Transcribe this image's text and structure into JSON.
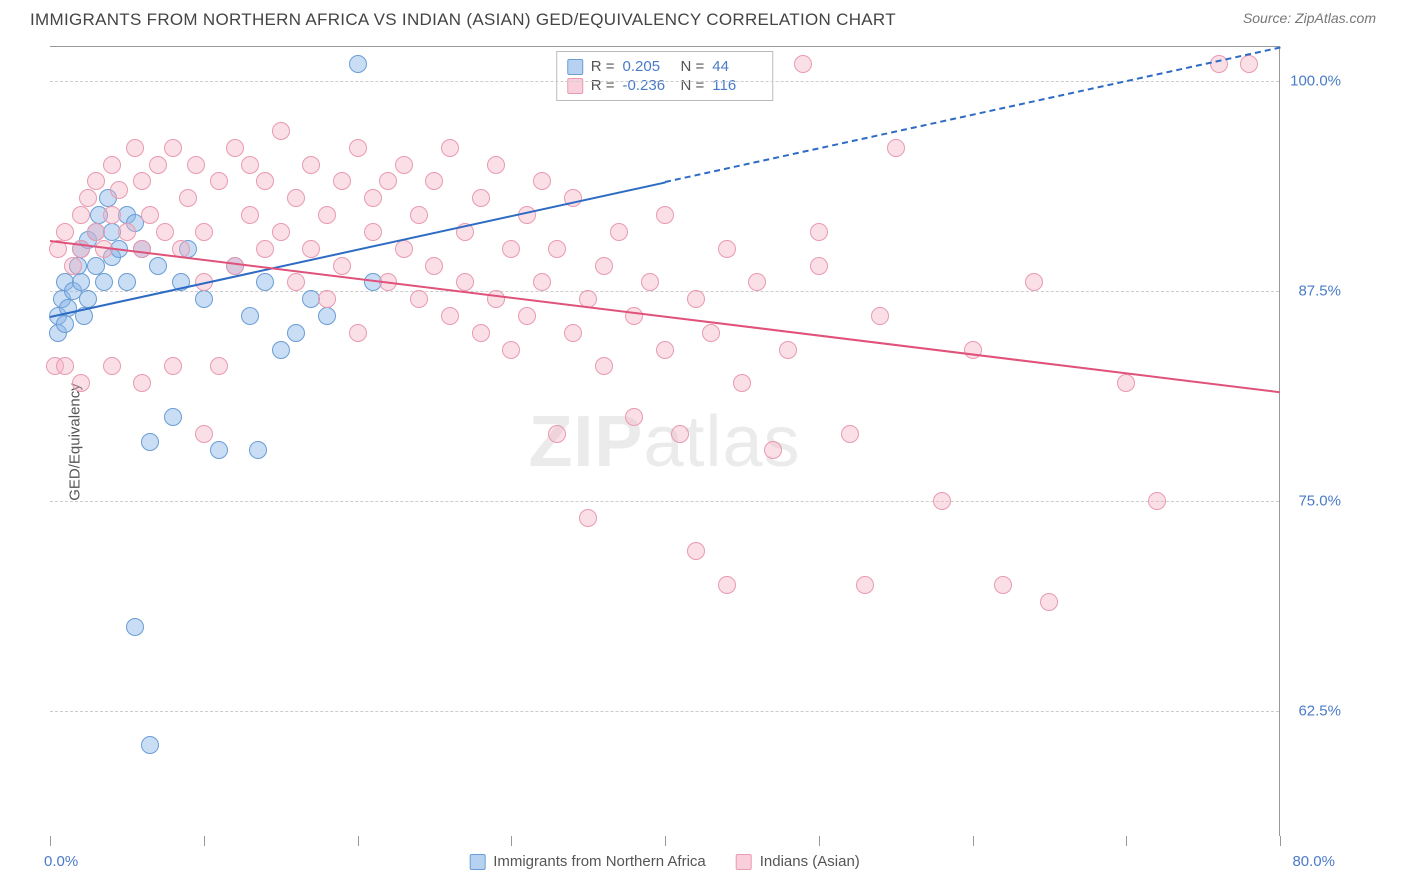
{
  "header": {
    "title": "IMMIGRANTS FROM NORTHERN AFRICA VS INDIAN (ASIAN) GED/EQUIVALENCY CORRELATION CHART",
    "source_prefix": "Source: ",
    "source_name": "ZipAtlas.com"
  },
  "chart": {
    "type": "scatter",
    "ylabel": "GED/Equivalency",
    "xlim": [
      0,
      80
    ],
    "ylim": [
      55,
      102
    ],
    "yticks": [
      62.5,
      75.0,
      87.5,
      100.0
    ],
    "ytick_labels": [
      "62.5%",
      "75.0%",
      "87.5%",
      "100.0%"
    ],
    "xtick_positions": [
      0,
      10,
      20,
      30,
      40,
      50,
      60,
      70,
      80
    ],
    "xrange_labels": {
      "min": "0.0%",
      "max": "80.0%"
    },
    "background_color": "#ffffff",
    "grid_color": "#cccccc",
    "watermark": "ZIPatlas",
    "point_radius": 9,
    "colors": {
      "blue_fill": "rgba(135,180,230,0.45)",
      "blue_stroke": "#6a9dd6",
      "pink_fill": "rgba(245,175,195,0.40)",
      "pink_stroke": "#e89ab0",
      "trend_blue": "#2d6bc4",
      "trend_pink": "#e0527a",
      "axis_text": "#4a7bc8"
    },
    "series": [
      {
        "name": "Immigrants from Northern Africa",
        "key": "blue",
        "R": "0.205",
        "N": "44",
        "trend": {
          "x1": 0,
          "y1": 86,
          "x2": 40,
          "y2": 94,
          "extend_x": 80,
          "extend_y": 102,
          "color": "#2d6bc4"
        },
        "points": [
          [
            0.5,
            86
          ],
          [
            0.8,
            87
          ],
          [
            1,
            88
          ],
          [
            1.2,
            86.5
          ],
          [
            1.5,
            87.5
          ],
          [
            1.8,
            89
          ],
          [
            2,
            90
          ],
          [
            2,
            88
          ],
          [
            2.2,
            86
          ],
          [
            2.5,
            90.5
          ],
          [
            2.5,
            87
          ],
          [
            3,
            89
          ],
          [
            3,
            91
          ],
          [
            3.2,
            92
          ],
          [
            3.5,
            88
          ],
          [
            3.8,
            93
          ],
          [
            4,
            89.5
          ],
          [
            4,
            91
          ],
          [
            4.5,
            90
          ],
          [
            5,
            92
          ],
          [
            5,
            88
          ],
          [
            5.5,
            91.5
          ],
          [
            6,
            90
          ],
          [
            6.5,
            78.5
          ],
          [
            7,
            89
          ],
          [
            8,
            80
          ],
          [
            8.5,
            88
          ],
          [
            9,
            90
          ],
          [
            10,
            87
          ],
          [
            11,
            78
          ],
          [
            12,
            89
          ],
          [
            13,
            86
          ],
          [
            13.5,
            78
          ],
          [
            14,
            88
          ],
          [
            15,
            84
          ],
          [
            16,
            85
          ],
          [
            17,
            87
          ],
          [
            18,
            86
          ],
          [
            20,
            101
          ],
          [
            21,
            88
          ],
          [
            5.5,
            67.5
          ],
          [
            6.5,
            60.5
          ],
          [
            0.5,
            85
          ],
          [
            1,
            85.5
          ]
        ]
      },
      {
        "name": "Indians (Asian)",
        "key": "pink",
        "R": "-0.236",
        "N": "116",
        "trend": {
          "x1": 0,
          "y1": 90.5,
          "x2": 80,
          "y2": 81.5,
          "color": "#e0527a"
        },
        "points": [
          [
            0.5,
            90
          ],
          [
            1,
            91
          ],
          [
            1.5,
            89
          ],
          [
            2,
            92
          ],
          [
            2,
            90
          ],
          [
            2.5,
            93
          ],
          [
            3,
            91
          ],
          [
            3,
            94
          ],
          [
            3.5,
            90
          ],
          [
            4,
            95
          ],
          [
            4,
            92
          ],
          [
            4.5,
            93.5
          ],
          [
            5,
            91
          ],
          [
            5.5,
            96
          ],
          [
            6,
            90
          ],
          [
            6,
            94
          ],
          [
            6.5,
            92
          ],
          [
            7,
            95
          ],
          [
            7.5,
            91
          ],
          [
            8,
            96
          ],
          [
            8.5,
            90
          ],
          [
            9,
            93
          ],
          [
            9.5,
            95
          ],
          [
            10,
            91
          ],
          [
            10,
            88
          ],
          [
            11,
            94
          ],
          [
            11,
            83
          ],
          [
            12,
            96
          ],
          [
            12,
            89
          ],
          [
            13,
            92
          ],
          [
            13,
            95
          ],
          [
            14,
            90
          ],
          [
            14,
            94
          ],
          [
            15,
            91
          ],
          [
            15,
            97
          ],
          [
            16,
            88
          ],
          [
            16,
            93
          ],
          [
            17,
            90
          ],
          [
            17,
            95
          ],
          [
            18,
            87
          ],
          [
            18,
            92
          ],
          [
            19,
            94
          ],
          [
            19,
            89
          ],
          [
            20,
            96
          ],
          [
            20,
            85
          ],
          [
            21,
            91
          ],
          [
            21,
            93
          ],
          [
            22,
            88
          ],
          [
            22,
            94
          ],
          [
            23,
            90
          ],
          [
            23,
            95
          ],
          [
            24,
            87
          ],
          [
            24,
            92
          ],
          [
            25,
            89
          ],
          [
            25,
            94
          ],
          [
            26,
            86
          ],
          [
            26,
            96
          ],
          [
            27,
            88
          ],
          [
            27,
            91
          ],
          [
            28,
            85
          ],
          [
            28,
            93
          ],
          [
            29,
            87
          ],
          [
            29,
            95
          ],
          [
            30,
            84
          ],
          [
            30,
            90
          ],
          [
            31,
            92
          ],
          [
            31,
            86
          ],
          [
            32,
            88
          ],
          [
            32,
            94
          ],
          [
            33,
            79
          ],
          [
            33,
            90
          ],
          [
            34,
            85
          ],
          [
            34,
            93
          ],
          [
            35,
            87
          ],
          [
            35,
            74
          ],
          [
            36,
            89
          ],
          [
            36,
            83
          ],
          [
            37,
            91
          ],
          [
            38,
            86
          ],
          [
            38,
            80
          ],
          [
            39,
            88
          ],
          [
            40,
            84
          ],
          [
            40,
            92
          ],
          [
            41,
            79
          ],
          [
            42,
            87
          ],
          [
            42,
            72
          ],
          [
            43,
            85
          ],
          [
            44,
            90
          ],
          [
            44,
            70
          ],
          [
            45,
            82
          ],
          [
            46,
            88
          ],
          [
            47,
            78
          ],
          [
            48,
            84
          ],
          [
            49,
            101
          ],
          [
            50,
            89
          ],
          [
            50,
            91
          ],
          [
            52,
            79
          ],
          [
            53,
            70
          ],
          [
            54,
            86
          ],
          [
            55,
            96
          ],
          [
            58,
            75
          ],
          [
            60,
            84
          ],
          [
            62,
            70
          ],
          [
            64,
            88
          ],
          [
            65,
            69
          ],
          [
            70,
            82
          ],
          [
            72,
            75
          ],
          [
            76,
            101
          ],
          [
            78,
            101
          ],
          [
            0.3,
            83
          ],
          [
            1,
            83
          ],
          [
            2,
            82
          ],
          [
            4,
            83
          ],
          [
            6,
            82
          ],
          [
            8,
            83
          ],
          [
            10,
            79
          ]
        ]
      }
    ],
    "legend_bottom": [
      {
        "key": "blue",
        "label": "Immigrants from Northern Africa"
      },
      {
        "key": "pink",
        "label": "Indians (Asian)"
      }
    ],
    "stats_labels": {
      "R": "R =",
      "N": "N ="
    }
  }
}
